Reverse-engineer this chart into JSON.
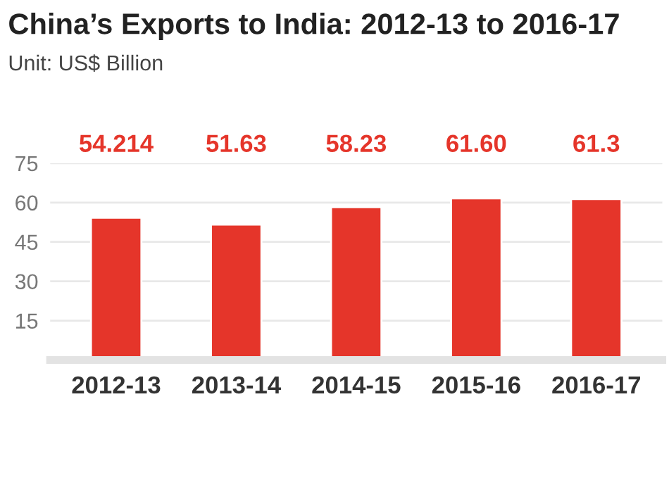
{
  "chart_data": {
    "type": "bar",
    "title": "China’s Exports to India: 2012-13 to 2016-17",
    "subtitle": "Unit: US$ Billion",
    "categories": [
      "2012-13",
      "2013-14",
      "2014-15",
      "2015-16",
      "2016-17"
    ],
    "values": [
      54.214,
      51.63,
      58.23,
      61.6,
      61.3
    ],
    "value_labels": [
      "54.214",
      "51.63",
      "58.23",
      "61.60",
      "61.3"
    ],
    "color": "#e5352a",
    "ylim": [
      0,
      75
    ],
    "yticks": [
      15,
      30,
      45,
      60,
      75
    ],
    "grid": "y"
  }
}
